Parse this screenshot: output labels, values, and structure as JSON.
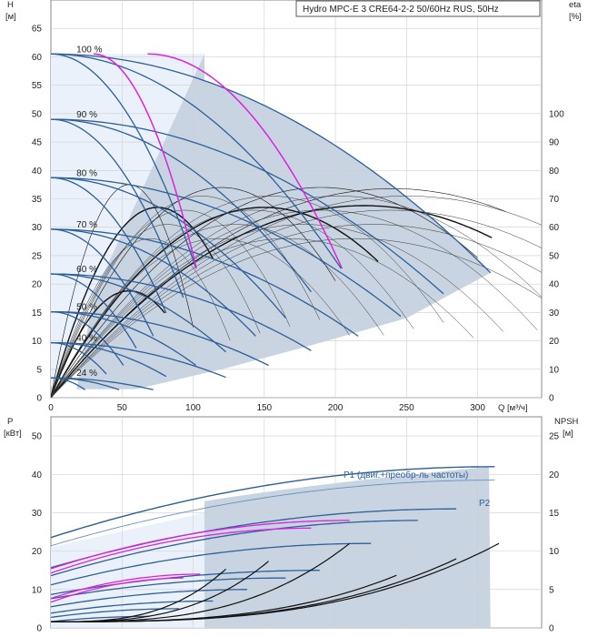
{
  "chart_data": [
    {
      "type": "line",
      "title": "Hydro MPC-E 3 CRE64-2-2 50/60Hz RUS, 50Hz",
      "xlabel": "Q [м³/ч]",
      "ylabel_left": "H\n[м]",
      "ylabel_right": "eta\n[%]",
      "xlim": [
        0,
        345
      ],
      "ylim": [
        0,
        70
      ],
      "x_ticks": [
        "0",
        "50",
        "100",
        "150",
        "200",
        "250",
        "300"
      ],
      "y_ticks": [
        "0",
        "5",
        "10",
        "15",
        "20",
        "25",
        "30",
        "35",
        "40",
        "45",
        "50",
        "55",
        "60",
        "65"
      ],
      "y2_ticks": [
        "0",
        "10",
        "20",
        "30",
        "40",
        "50",
        "60",
        "70",
        "80",
        "90",
        "100"
      ],
      "speed_labels": [
        "100 %",
        "90 %",
        "80 %",
        "70 %",
        "60 %",
        "50 %",
        "40 %",
        "24 %"
      ],
      "speed_fractions": [
        1.0,
        0.9,
        0.8,
        0.7,
        0.6,
        0.5,
        0.4,
        0.24
      ],
      "shutoff_head_m": 60.5,
      "pump_count": 3,
      "max_flow_per_pump_m3h": 103,
      "colors": {
        "curve": "#2d5f99",
        "shade": "#c8d4e2",
        "light": "#eaf1fa",
        "magenta": "#e020e0",
        "eta": "#111111"
      }
    },
    {
      "type": "line",
      "ylabel_left": "P\n[кВт]",
      "ylabel_right": "NPSH\n[м]",
      "xlim": [
        0,
        345
      ],
      "ylim": [
        0,
        55
      ],
      "y_ticks": [
        "0",
        "10",
        "20",
        "30",
        "40",
        "50"
      ],
      "y2_ticks": [
        "0",
        "5",
        "10",
        "15",
        "20",
        "25"
      ],
      "series_labels": [
        "P1 (двиг.+преобр-ль частоты)",
        "P2"
      ],
      "p1_max_kw": 42,
      "p2_max_kw": 38.5
    }
  ]
}
